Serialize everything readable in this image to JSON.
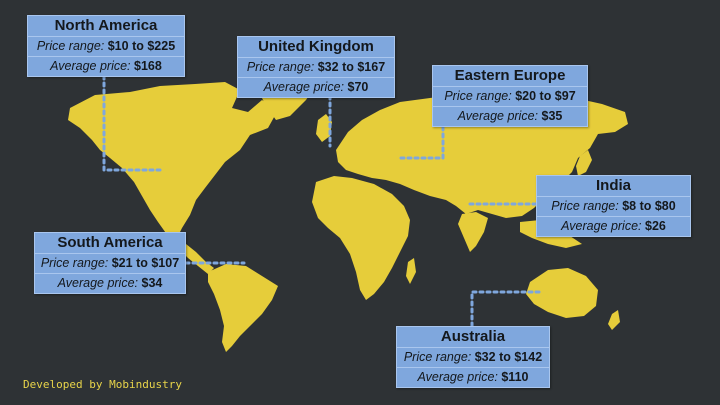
{
  "colors": {
    "background": "#2e3235",
    "land": "#e6cd3a",
    "box_fill": "#7fa7dd",
    "connector": "#7fa7dd",
    "footer_text": "#e8d44a"
  },
  "regions": [
    {
      "id": "north-america",
      "name": "North America",
      "range_label": "Price range:",
      "range_value": "$10 to $225",
      "avg_label": "Average price:",
      "avg_value": "$168"
    },
    {
      "id": "united-kingdom",
      "name": "United Kingdom",
      "range_label": "Price range:",
      "range_value": "$32 to $167",
      "avg_label": "Average price:",
      "avg_value": "$70"
    },
    {
      "id": "eastern-europe",
      "name": "Eastern Europe",
      "range_label": "Price range:",
      "range_value": "$20 to $97",
      "avg_label": "Average price:",
      "avg_value": "$35"
    },
    {
      "id": "india",
      "name": "India",
      "range_label": "Price range:",
      "range_value": "$8 to $80",
      "avg_label": "Average price:",
      "avg_value": "$26"
    },
    {
      "id": "south-america",
      "name": "South America",
      "range_label": "Price range:",
      "range_value": "$21 to $107",
      "avg_label": "Average price:",
      "avg_value": "$34"
    },
    {
      "id": "australia",
      "name": "Australia",
      "range_label": "Price range:",
      "range_value": "$32 to $142",
      "avg_label": "Average price:",
      "avg_value": "$110"
    }
  ],
  "footer": {
    "credit": "Developed by Mobindustry"
  }
}
